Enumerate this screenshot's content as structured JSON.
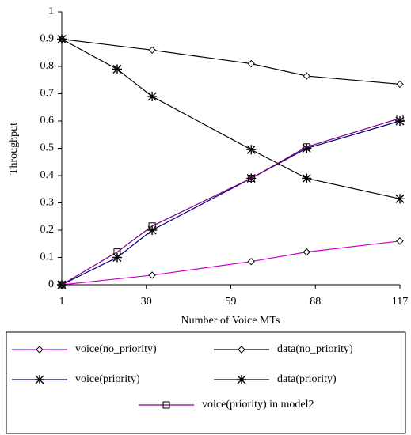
{
  "chart_data": {
    "type": "line",
    "x_label": "Number of Voice MTs",
    "y_label": "Throughput",
    "xlim": [
      1,
      117
    ],
    "xticks": [
      1,
      30,
      59,
      88,
      117
    ],
    "ylim": [
      0,
      1
    ],
    "yticks": [
      0,
      0.1,
      0.2,
      0.3,
      0.4,
      0.5,
      0.6,
      0.7,
      0.8,
      0.9,
      1
    ],
    "series": [
      {
        "name": "voice(no_priority)",
        "color": "#cc00cc",
        "marker": "diamond",
        "x": [
          1,
          32,
          66,
          85,
          117
        ],
        "values": [
          0,
          0.035,
          0.085,
          0.12,
          0.16
        ]
      },
      {
        "name": "data(no_priority)",
        "color": "#000000",
        "marker": "diamond",
        "x": [
          1,
          32,
          66,
          85,
          117
        ],
        "values": [
          0.9,
          0.86,
          0.81,
          0.765,
          0.735
        ]
      },
      {
        "name": "voice(priority)",
        "color": "#000080",
        "marker": "star",
        "x": [
          1,
          20,
          32,
          66,
          85,
          117
        ],
        "values": [
          0,
          0.1,
          0.2,
          0.39,
          0.5,
          0.6
        ]
      },
      {
        "name": "data(priority)",
        "color": "#000000",
        "marker": "star",
        "x": [
          1,
          20,
          32,
          66,
          85,
          117
        ],
        "values": [
          0.9,
          0.79,
          0.69,
          0.495,
          0.39,
          0.315
        ]
      },
      {
        "name": "voice(priority) in model2",
        "color": "#800080",
        "marker": "square",
        "x": [
          1,
          20,
          32,
          66,
          85,
          117
        ],
        "values": [
          0,
          0.12,
          0.215,
          0.39,
          0.505,
          0.61
        ]
      }
    ]
  }
}
